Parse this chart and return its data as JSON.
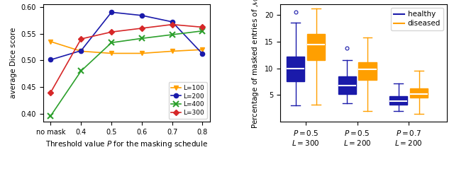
{
  "left_plot": {
    "xlabel": "Threshold value $P$ for the masking schedule",
    "ylabel": "average Dice score",
    "x_labels": [
      "no mask",
      "0.4",
      "0.5",
      "0.6",
      "0.7",
      "0.8"
    ],
    "x_positions": [
      0,
      1,
      2,
      3,
      4,
      5
    ],
    "series": [
      {
        "label": "L=100",
        "color": "#ff9f00",
        "marker": "v",
        "values": [
          0.535,
          0.517,
          0.513,
          0.513,
          0.517,
          0.52
        ]
      },
      {
        "label": "L=200",
        "color": "#1a1aaa",
        "marker": "o",
        "values": [
          0.501,
          0.518,
          0.59,
          0.584,
          0.572,
          0.512
        ]
      },
      {
        "label": "L=400",
        "color": "#2ca02c",
        "marker": "x",
        "values": [
          0.396,
          0.48,
          0.533,
          0.541,
          0.548,
          0.555
        ]
      },
      {
        "label": "L=300",
        "color": "#d62728",
        "marker": "D",
        "values": [
          0.44,
          0.54,
          0.553,
          0.56,
          0.567,
          0.562
        ]
      }
    ],
    "ylim": [
      0.385,
      0.605
    ],
    "yticks": [
      0.4,
      0.45,
      0.5,
      0.55,
      0.6
    ]
  },
  "right_plot": {
    "ylabel": "Percentage of masked entries of $\\mathcal{M}$",
    "xlabel_groups": [
      {
        "line1": "$P = 0.5$",
        "line2": "$L = 300$"
      },
      {
        "line1": "$P = 0.5$",
        "line2": "$L = 200$"
      },
      {
        "line1": "$P = 0.7$",
        "line2": "$L = 200$"
      }
    ],
    "ylim": [
      0,
      22
    ],
    "yticks": [
      5,
      10,
      15,
      20
    ],
    "healthy_color": "#1a1aaa",
    "diseased_color": "#ff9f00",
    "groups": [
      {
        "name": "P0.5_L300",
        "healthy": {
          "median": 10.0,
          "q1": 7.5,
          "q3": 12.2,
          "whislo": 3.0,
          "whishi": 18.5,
          "fliers": [
            20.5
          ]
        },
        "diseased": {
          "median": 14.5,
          "q1": 11.5,
          "q3": 16.5,
          "whislo": 3.2,
          "whishi": 21.2,
          "fliers": []
        }
      },
      {
        "name": "P0.5_L200",
        "healthy": {
          "median": 6.8,
          "q1": 5.2,
          "q3": 8.5,
          "whislo": 3.5,
          "whishi": 11.5,
          "fliers": [
            13.8
          ]
        },
        "diseased": {
          "median": 9.8,
          "q1": 7.8,
          "q3": 11.2,
          "whislo": 2.0,
          "whishi": 15.8,
          "fliers": []
        }
      },
      {
        "name": "P0.7_L200",
        "healthy": {
          "median": 3.8,
          "q1": 3.2,
          "q3": 4.8,
          "whislo": 2.0,
          "whishi": 7.2,
          "fliers": []
        },
        "diseased": {
          "median": 5.2,
          "q1": 4.5,
          "q3": 6.2,
          "whislo": 1.5,
          "whishi": 9.5,
          "fliers": []
        }
      }
    ]
  }
}
